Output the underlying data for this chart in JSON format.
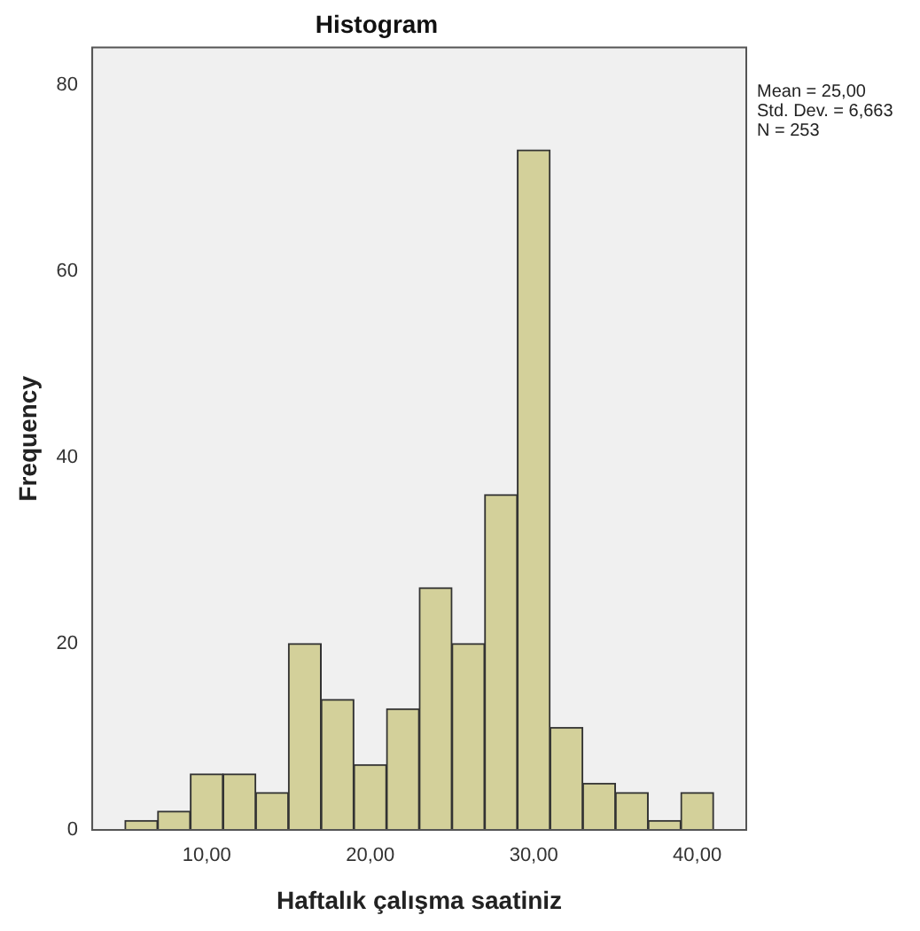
{
  "chart_data": {
    "type": "histogram",
    "title": "Histogram",
    "xlabel": "Haftalık çalışma saatiniz",
    "ylabel": "Frequency",
    "bins": [
      5,
      7,
      9,
      11,
      13,
      15,
      17,
      19,
      21,
      23,
      25,
      27,
      29,
      31,
      33,
      35,
      37,
      39,
      41
    ],
    "values": [
      1,
      2,
      6,
      6,
      4,
      20,
      14,
      7,
      13,
      26,
      20,
      36,
      73,
      11,
      5,
      4,
      1,
      4
    ],
    "color": "#d3d09a",
    "xlim": [
      3,
      43
    ],
    "xticks": [
      {
        "value": 10,
        "label": "10,00"
      },
      {
        "value": 20,
        "label": "20,00"
      },
      {
        "value": 30,
        "label": "30,00"
      },
      {
        "value": 40,
        "label": "40,00"
      }
    ],
    "ylim": [
      0,
      84
    ],
    "yticks": [
      0,
      20,
      40,
      60,
      80
    ],
    "grid": false,
    "legend": false,
    "annotations": [
      "Mean = 25,00",
      "Std. Dev. = 6,663",
      "N = 253"
    ]
  }
}
